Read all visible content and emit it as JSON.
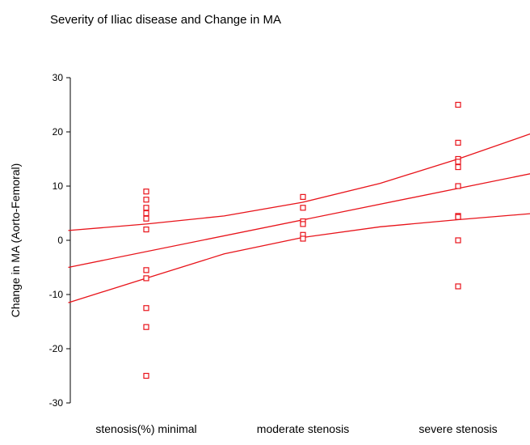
{
  "chart_data": {
    "type": "scatter",
    "title": "Severity of Iliac disease and Change in MA",
    "xlabel": "",
    "ylabel": "Change in MA (Aorto-Femoral)",
    "categories": [
      "stenosis(%) minimal",
      "moderate stenosis",
      "severe stenosis"
    ],
    "ylim": [
      -30,
      30
    ],
    "yticks": [
      -30,
      -20,
      -10,
      0,
      10,
      20,
      30
    ],
    "grid": false,
    "legend": "none",
    "marker_color": "#e8131a",
    "line_color": "#e8131a",
    "series": [
      {
        "category": "stenosis(%) minimal",
        "values": [
          9,
          7.5,
          6,
          5,
          4,
          2,
          -5.5,
          -7,
          -12.5,
          -16,
          -25
        ]
      },
      {
        "category": "moderate stenosis",
        "values": [
          8,
          6,
          3.5,
          3,
          1,
          0.3
        ]
      },
      {
        "category": "severe stenosis",
        "values": [
          25,
          18,
          15,
          14.5,
          13.5,
          10,
          4.5,
          4.3,
          0,
          -8.5
        ]
      }
    ],
    "fit_lines": [
      {
        "type": "fit",
        "x": [
          0.5,
          3.5
        ],
        "y": [
          -5,
          12.5
        ]
      },
      {
        "type": "upper_ci",
        "x": [
          0.5,
          1,
          1.5,
          2,
          2.5,
          3,
          3.5
        ],
        "y": [
          1.8,
          3,
          4.5,
          7,
          10.5,
          15,
          20
        ]
      },
      {
        "type": "lower_ci",
        "x": [
          0.5,
          1,
          1.5,
          2,
          2.5,
          3,
          3.5
        ],
        "y": [
          -11.5,
          -7,
          -2.5,
          0.5,
          2.5,
          3.8,
          5
        ]
      }
    ]
  }
}
